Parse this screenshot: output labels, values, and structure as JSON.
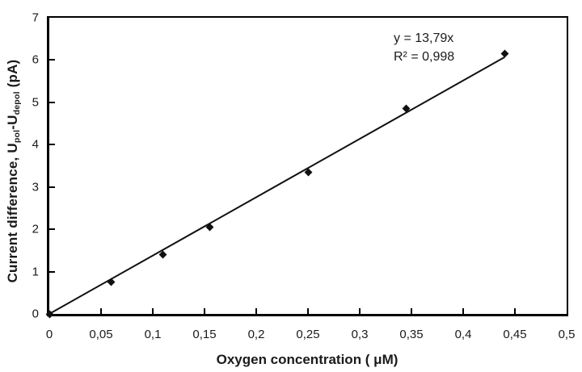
{
  "chart_data": {
    "type": "scatter",
    "title": "",
    "xlabel": "Oxygen concentration ( μM)",
    "ylabel_parts": {
      "prefix": "Current difference, U",
      "sub1": "pol",
      "mid": "-U",
      "sub2": "depol",
      "suffix": " (pA)"
    },
    "xlim": [
      0,
      0.5
    ],
    "ylim": [
      0,
      7
    ],
    "grid": false,
    "legend": "none",
    "x_ticks": [
      {
        "value": 0,
        "label": "0"
      },
      {
        "value": 0.05,
        "label": "0,05"
      },
      {
        "value": 0.1,
        "label": "0,1"
      },
      {
        "value": 0.15,
        "label": "0,15"
      },
      {
        "value": 0.2,
        "label": "0,2"
      },
      {
        "value": 0.25,
        "label": "0,25"
      },
      {
        "value": 0.3,
        "label": "0,3"
      },
      {
        "value": 0.35,
        "label": "0,35"
      },
      {
        "value": 0.4,
        "label": "0,4"
      },
      {
        "value": 0.45,
        "label": "0,45"
      },
      {
        "value": 0.5,
        "label": "0,5"
      }
    ],
    "y_ticks": [
      {
        "value": 0,
        "label": "0"
      },
      {
        "value": 1,
        "label": "1"
      },
      {
        "value": 2,
        "label": "2"
      },
      {
        "value": 3,
        "label": "3"
      },
      {
        "value": 4,
        "label": "4"
      },
      {
        "value": 5,
        "label": "5"
      },
      {
        "value": 6,
        "label": "6"
      },
      {
        "value": 7,
        "label": "7"
      }
    ],
    "points": [
      {
        "x": 0,
        "y": 0
      },
      {
        "x": 0.06,
        "y": 0.75
      },
      {
        "x": 0.11,
        "y": 1.4
      },
      {
        "x": 0.155,
        "y": 2.05
      },
      {
        "x": 0.25,
        "y": 3.35
      },
      {
        "x": 0.345,
        "y": 4.85
      },
      {
        "x": 0.44,
        "y": 6.15
      }
    ],
    "trendline": {
      "slope": 13.79,
      "x_start": 0,
      "x_end": 0.44
    },
    "annotation": {
      "line1": "y = 13,79x",
      "line2": "R² = 0,998"
    },
    "colors": {
      "marker": "#111111",
      "line": "#111111",
      "axis": "#000000",
      "text": "#1a1a1a"
    }
  }
}
